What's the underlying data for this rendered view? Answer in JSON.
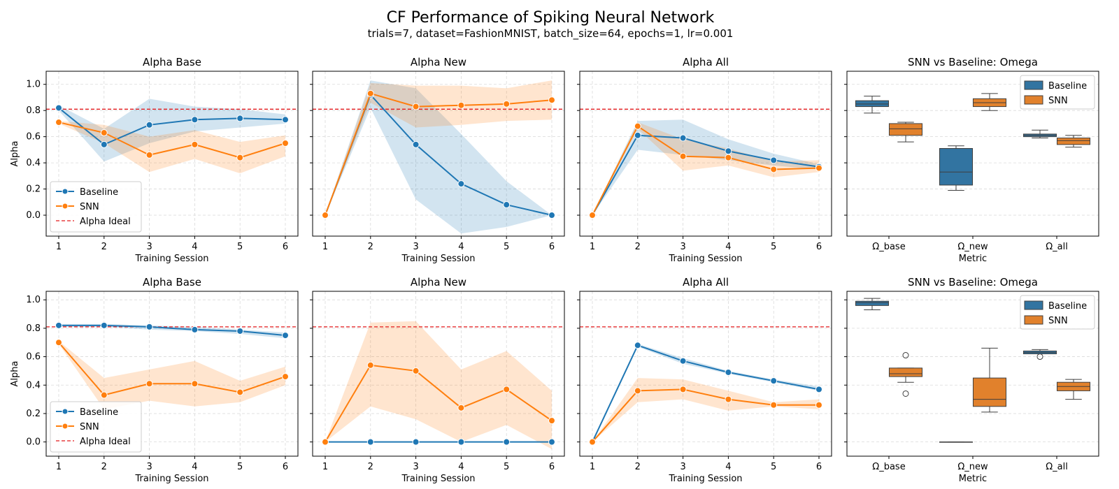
{
  "figure": {
    "title": "CF Performance of Spiking Neural Network",
    "subtitle": "trials=7, dataset=FashionMNIST, batch_size=64, epochs=1, lr=0.001"
  },
  "colors": {
    "baseline": "#1f77b4",
    "snn": "#ff7f0e",
    "ideal": "#e41a1c",
    "grid": "#d9d9d9"
  },
  "legend_labels": {
    "baseline": "Baseline",
    "snn": "SNN",
    "ideal": "Alpha Ideal"
  },
  "chart_data": [
    {
      "type": "line",
      "row": 1,
      "col": 1,
      "title": "Alpha Base",
      "xlabel": "Training Session",
      "ylabel": "Alpha",
      "x": [
        1,
        2,
        3,
        4,
        5,
        6
      ],
      "ylim": [
        -0.16,
        1.1
      ],
      "yticks": [
        "0.0",
        "0.2",
        "0.4",
        "0.6",
        "0.8",
        "1.0"
      ],
      "ideal": 0.81,
      "legend": "lower-left",
      "grid": true,
      "series": [
        {
          "name": "Baseline",
          "values": [
            0.82,
            0.54,
            0.69,
            0.73,
            0.74,
            0.73
          ],
          "lower": [
            0.8,
            0.41,
            0.55,
            0.64,
            0.67,
            0.7
          ],
          "upper": [
            0.84,
            0.66,
            0.89,
            0.83,
            0.81,
            0.77
          ]
        },
        {
          "name": "SNN",
          "values": [
            0.71,
            0.63,
            0.46,
            0.54,
            0.44,
            0.55
          ],
          "lower": [
            0.7,
            0.55,
            0.33,
            0.43,
            0.32,
            0.45
          ],
          "upper": [
            0.72,
            0.69,
            0.6,
            0.65,
            0.56,
            0.61
          ]
        }
      ]
    },
    {
      "type": "line",
      "row": 1,
      "col": 2,
      "title": "Alpha New",
      "xlabel": "Training Session",
      "ylabel": "",
      "x": [
        1,
        2,
        3,
        4,
        5,
        6
      ],
      "ylim": [
        -0.16,
        1.1
      ],
      "yticks": [
        "0.0",
        "0.2",
        "0.4",
        "0.6",
        "0.8",
        "1.0"
      ],
      "ideal": 0.81,
      "legend": "none",
      "grid": true,
      "series": [
        {
          "name": "Baseline",
          "values": [
            0.0,
            0.92,
            0.54,
            0.24,
            0.08,
            0.0
          ],
          "lower": [
            0.0,
            0.82,
            0.12,
            -0.14,
            -0.09,
            0.0
          ],
          "upper": [
            0.0,
            1.03,
            0.97,
            0.62,
            0.26,
            0.0
          ]
        },
        {
          "name": "SNN",
          "values": [
            0.0,
            0.93,
            0.83,
            0.84,
            0.85,
            0.88
          ],
          "lower": [
            0.0,
            0.86,
            0.67,
            0.69,
            0.72,
            0.73
          ],
          "upper": [
            0.0,
            1.01,
            0.99,
            0.99,
            0.97,
            1.03
          ]
        }
      ]
    },
    {
      "type": "line",
      "row": 1,
      "col": 3,
      "title": "Alpha All",
      "xlabel": "Training Session",
      "ylabel": "",
      "x": [
        1,
        2,
        3,
        4,
        5,
        6
      ],
      "ylim": [
        -0.16,
        1.1
      ],
      "yticks": [
        "0.0",
        "0.2",
        "0.4",
        "0.6",
        "0.8",
        "1.0"
      ],
      "ideal": 0.81,
      "legend": "none",
      "grid": true,
      "series": [
        {
          "name": "Baseline",
          "values": [
            0.0,
            0.61,
            0.59,
            0.49,
            0.42,
            0.37
          ],
          "lower": [
            0.0,
            0.5,
            0.46,
            0.42,
            0.38,
            0.35
          ],
          "upper": [
            0.0,
            0.72,
            0.73,
            0.58,
            0.47,
            0.39
          ]
        },
        {
          "name": "SNN",
          "values": [
            0.0,
            0.68,
            0.45,
            0.44,
            0.35,
            0.36
          ],
          "lower": [
            0.0,
            0.66,
            0.34,
            0.38,
            0.29,
            0.33
          ],
          "upper": [
            0.0,
            0.71,
            0.58,
            0.51,
            0.41,
            0.42
          ]
        }
      ]
    },
    {
      "type": "box",
      "row": 1,
      "col": 4,
      "title": "SNN vs Baseline: Omega",
      "xlabel": "Metric",
      "ylabel": "",
      "categories": [
        "Ω_base",
        "Ω_new",
        "Ω_all"
      ],
      "ylim": [
        -0.16,
        1.1
      ],
      "yticks": [
        "0.0",
        "0.2",
        "0.4",
        "0.6",
        "0.8",
        "1.0"
      ],
      "legend": "top-right",
      "grid": true,
      "series": [
        {
          "name": "Baseline",
          "boxes": [
            {
              "min": 0.78,
              "q1": 0.83,
              "med": 0.85,
              "q3": 0.875,
              "max": 0.91,
              "outliers": []
            },
            {
              "min": 0.19,
              "q1": 0.23,
              "med": 0.33,
              "q3": 0.51,
              "max": 0.53,
              "outliers": []
            },
            {
              "min": 0.59,
              "q1": 0.6,
              "med": 0.61,
              "q3": 0.62,
              "max": 0.65,
              "outliers": []
            }
          ]
        },
        {
          "name": "SNN",
          "boxes": [
            {
              "min": 0.56,
              "q1": 0.61,
              "med": 0.66,
              "q3": 0.7,
              "max": 0.71,
              "outliers": []
            },
            {
              "min": 0.8,
              "q1": 0.83,
              "med": 0.86,
              "q3": 0.89,
              "max": 0.93,
              "outliers": []
            },
            {
              "min": 0.52,
              "q1": 0.54,
              "med": 0.57,
              "q3": 0.59,
              "max": 0.61,
              "outliers": []
            }
          ]
        }
      ]
    },
    {
      "type": "line",
      "row": 2,
      "col": 1,
      "title": "Alpha Base",
      "xlabel": "Training Session",
      "ylabel": "Alpha",
      "x": [
        1,
        2,
        3,
        4,
        5,
        6
      ],
      "ylim": [
        -0.1,
        1.06
      ],
      "yticks": [
        "0.0",
        "0.2",
        "0.4",
        "0.6",
        "0.8",
        "1.0"
      ],
      "ideal": 0.81,
      "legend": "lower-left",
      "grid": true,
      "series": [
        {
          "name": "Baseline",
          "values": [
            0.82,
            0.82,
            0.81,
            0.79,
            0.78,
            0.75
          ],
          "lower": [
            0.81,
            0.81,
            0.79,
            0.78,
            0.76,
            0.73
          ],
          "upper": [
            0.83,
            0.83,
            0.82,
            0.81,
            0.79,
            0.77
          ]
        },
        {
          "name": "SNN",
          "values": [
            0.7,
            0.33,
            0.41,
            0.41,
            0.35,
            0.46
          ],
          "lower": [
            0.69,
            0.23,
            0.29,
            0.25,
            0.28,
            0.4
          ],
          "upper": [
            0.71,
            0.45,
            0.51,
            0.57,
            0.43,
            0.53
          ]
        }
      ]
    },
    {
      "type": "line",
      "row": 2,
      "col": 2,
      "title": "Alpha New",
      "xlabel": "Training Session",
      "ylabel": "",
      "x": [
        1,
        2,
        3,
        4,
        5,
        6
      ],
      "ylim": [
        -0.1,
        1.06
      ],
      "yticks": [
        "0.0",
        "0.2",
        "0.4",
        "0.6",
        "0.8",
        "1.0"
      ],
      "ideal": 0.81,
      "legend": "none",
      "grid": true,
      "series": [
        {
          "name": "Baseline",
          "values": [
            0.0,
            0.0,
            0.0,
            0.0,
            0.0,
            0.0
          ],
          "lower": [
            0.0,
            0.0,
            0.0,
            0.0,
            0.0,
            0.0
          ],
          "upper": [
            0.0,
            0.0,
            0.0,
            0.0,
            0.0,
            0.0
          ]
        },
        {
          "name": "SNN",
          "values": [
            0.0,
            0.54,
            0.5,
            0.24,
            0.37,
            0.15
          ],
          "lower": [
            0.0,
            0.25,
            0.16,
            0.0,
            0.12,
            -0.05
          ],
          "upper": [
            0.0,
            0.84,
            0.85,
            0.51,
            0.64,
            0.36
          ]
        }
      ]
    },
    {
      "type": "line",
      "row": 2,
      "col": 3,
      "title": "Alpha All",
      "xlabel": "Training Session",
      "ylabel": "",
      "x": [
        1,
        2,
        3,
        4,
        5,
        6
      ],
      "ylim": [
        -0.1,
        1.06
      ],
      "yticks": [
        "0.0",
        "0.2",
        "0.4",
        "0.6",
        "0.8",
        "1.0"
      ],
      "ideal": 0.81,
      "legend": "none",
      "grid": true,
      "series": [
        {
          "name": "Baseline",
          "values": [
            0.0,
            0.68,
            0.57,
            0.49,
            0.43,
            0.37
          ],
          "lower": [
            0.0,
            0.67,
            0.55,
            0.48,
            0.42,
            0.36
          ],
          "upper": [
            0.0,
            0.69,
            0.59,
            0.5,
            0.44,
            0.39
          ]
        },
        {
          "name": "SNN",
          "values": [
            0.0,
            0.36,
            0.37,
            0.3,
            0.26,
            0.26
          ],
          "lower": [
            0.0,
            0.28,
            0.3,
            0.22,
            0.25,
            0.23
          ],
          "upper": [
            0.0,
            0.45,
            0.44,
            0.36,
            0.28,
            0.3
          ]
        }
      ]
    },
    {
      "type": "box",
      "row": 2,
      "col": 4,
      "title": "SNN vs Baseline: Omega",
      "xlabel": "Metric",
      "ylabel": "",
      "categories": [
        "Ω_base",
        "Ω_new",
        "Ω_all"
      ],
      "ylim": [
        -0.1,
        1.06
      ],
      "yticks": [
        "0.0",
        "0.2",
        "0.4",
        "0.6",
        "0.8",
        "1.0"
      ],
      "legend": "top-right",
      "grid": true,
      "series": [
        {
          "name": "Baseline",
          "boxes": [
            {
              "min": 0.93,
              "q1": 0.96,
              "med": 0.98,
              "q3": 0.99,
              "max": 1.01,
              "outliers": []
            },
            {
              "min": 0.0,
              "q1": 0.0,
              "med": 0.0,
              "q3": 0.0,
              "max": 0.0,
              "outliers": []
            },
            {
              "min": 0.62,
              "q1": 0.62,
              "med": 0.63,
              "q3": 0.64,
              "max": 0.65,
              "outliers": [
                0.6
              ]
            }
          ]
        },
        {
          "name": "SNN",
          "boxes": [
            {
              "min": 0.42,
              "q1": 0.46,
              "med": 0.48,
              "q3": 0.52,
              "max": 0.52,
              "outliers": [
                0.61,
                0.34
              ]
            },
            {
              "min": 0.21,
              "q1": 0.25,
              "med": 0.3,
              "q3": 0.45,
              "max": 0.66,
              "outliers": []
            },
            {
              "min": 0.3,
              "q1": 0.36,
              "med": 0.39,
              "q3": 0.42,
              "max": 0.44,
              "outliers": []
            }
          ]
        }
      ]
    }
  ]
}
